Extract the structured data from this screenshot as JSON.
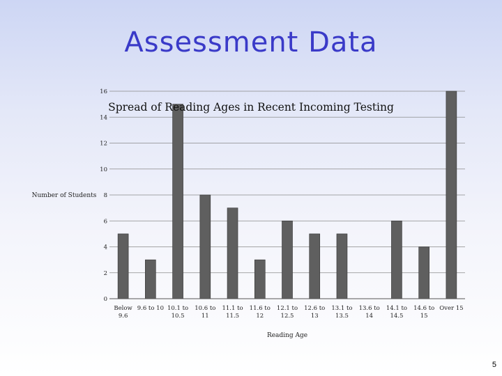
{
  "slide": {
    "title": "Assessment Data",
    "page_number": "5"
  },
  "chart_data": {
    "type": "bar",
    "title": "Spread of Reading Ages in Recent Incoming Testing",
    "xlabel": "Reading Age",
    "ylabel": "Number of Students",
    "ylim": [
      0,
      16
    ],
    "yticks": [
      0,
      2,
      4,
      6,
      8,
      10,
      12,
      14,
      16
    ],
    "grid": true,
    "categories": [
      [
        "Below",
        "9.6"
      ],
      [
        "9.6 to 10"
      ],
      [
        "10.1 to",
        "10.5"
      ],
      [
        "10.6 to",
        "11"
      ],
      [
        "11.1 to",
        "11.5"
      ],
      [
        "11.6 to",
        "12"
      ],
      [
        "12.1 to",
        "12.5"
      ],
      [
        "12.6 to",
        "13"
      ],
      [
        "13.1 to",
        "13.5"
      ],
      [
        "13.6 to",
        "14"
      ],
      [
        "14.1 to",
        "14.5"
      ],
      [
        "14.6 to",
        "15"
      ],
      [
        "Over 15"
      ]
    ],
    "values": [
      5,
      3,
      15,
      8,
      7,
      3,
      6,
      5,
      5,
      0,
      6,
      4,
      16
    ],
    "bar_color": "#5f5f5f"
  }
}
